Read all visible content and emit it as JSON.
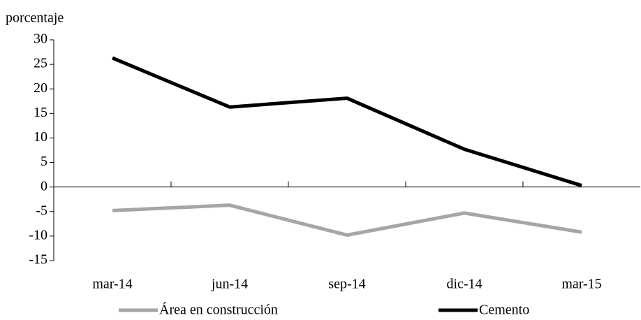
{
  "chart_data": {
    "type": "line",
    "y_axis_label": "porcentaje",
    "categories": [
      "mar-14",
      "jun-14",
      "sep-14",
      "dic-14",
      "mar-15"
    ],
    "series": [
      {
        "name": "Área en construcción",
        "color": "#a6a6a6",
        "values": [
          -4.8,
          -3.7,
          -9.8,
          -5.3,
          -9.2
        ]
      },
      {
        "name": "Cemento",
        "color": "#000000",
        "values": [
          26.3,
          16.3,
          18.1,
          7.7,
          0.3
        ]
      }
    ],
    "ylim": [
      -15,
      30
    ],
    "yticks": [
      -15,
      -10,
      -5,
      0,
      5,
      10,
      15,
      20,
      25,
      30
    ],
    "legend": "bottom"
  }
}
